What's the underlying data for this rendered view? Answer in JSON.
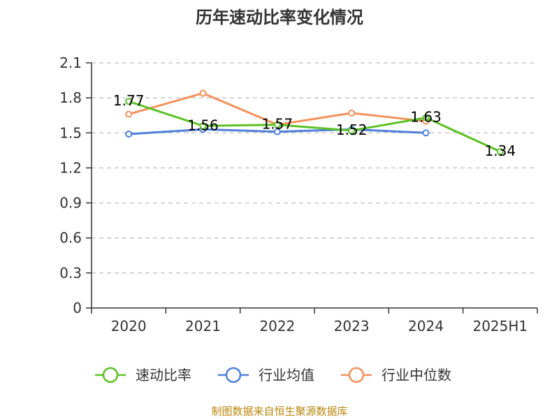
{
  "chart_data": {
    "type": "line",
    "title": "历年速动比率变化情况",
    "categories": [
      "2020",
      "2021",
      "2022",
      "2023",
      "2024",
      "2025H1"
    ],
    "ylim": [
      0,
      2.1
    ],
    "yticks": [
      "0",
      "0.3",
      "0.6",
      "0.9",
      "1.2",
      "1.5",
      "1.8",
      "2.1"
    ],
    "grid": true,
    "legend_position": "bottom",
    "series": [
      {
        "name": "速动比率",
        "color": "#5cc224",
        "values": [
          1.77,
          1.56,
          1.57,
          1.52,
          1.63,
          1.34
        ],
        "labels": [
          "1.77",
          "1.56",
          "1.57",
          "1.52",
          "1.63",
          "1.34"
        ],
        "show_labels": true
      },
      {
        "name": "行业均值",
        "color": "#4f7fd9",
        "values": [
          1.49,
          1.53,
          1.51,
          1.53,
          1.5,
          null
        ],
        "show_labels": false
      },
      {
        "name": "行业中位数",
        "color": "#f4915c",
        "values": [
          1.66,
          1.84,
          1.57,
          1.67,
          1.6,
          null
        ],
        "show_labels": false
      }
    ]
  },
  "footer": {
    "source": "制图数据来自恒生聚源数据库"
  }
}
